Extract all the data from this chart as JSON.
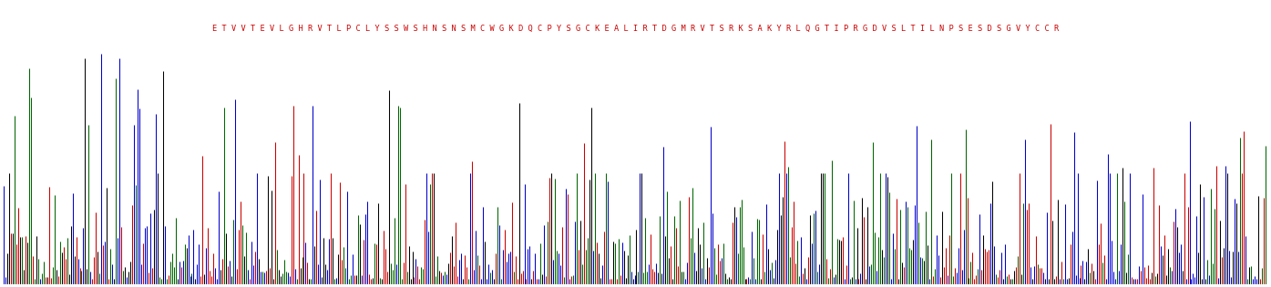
{
  "sequence_spaced": "E T V V T E V L G H R V T L P C L Y S S W S H N S N S M C W G K D Q C P Y S G C K E A L I R T D G M R V T S R K S A K Y R L Q G T I P R G D V S L T I L N P S E S D S G V Y C C R",
  "text_color": "#cc0000",
  "colors": [
    "#000000",
    "#cc0000",
    "#0000cc",
    "#006600"
  ],
  "bg_color": "#ffffff",
  "fig_width": 13.95,
  "fig_height": 3.15,
  "n_lines": 700,
  "seed": 12345
}
